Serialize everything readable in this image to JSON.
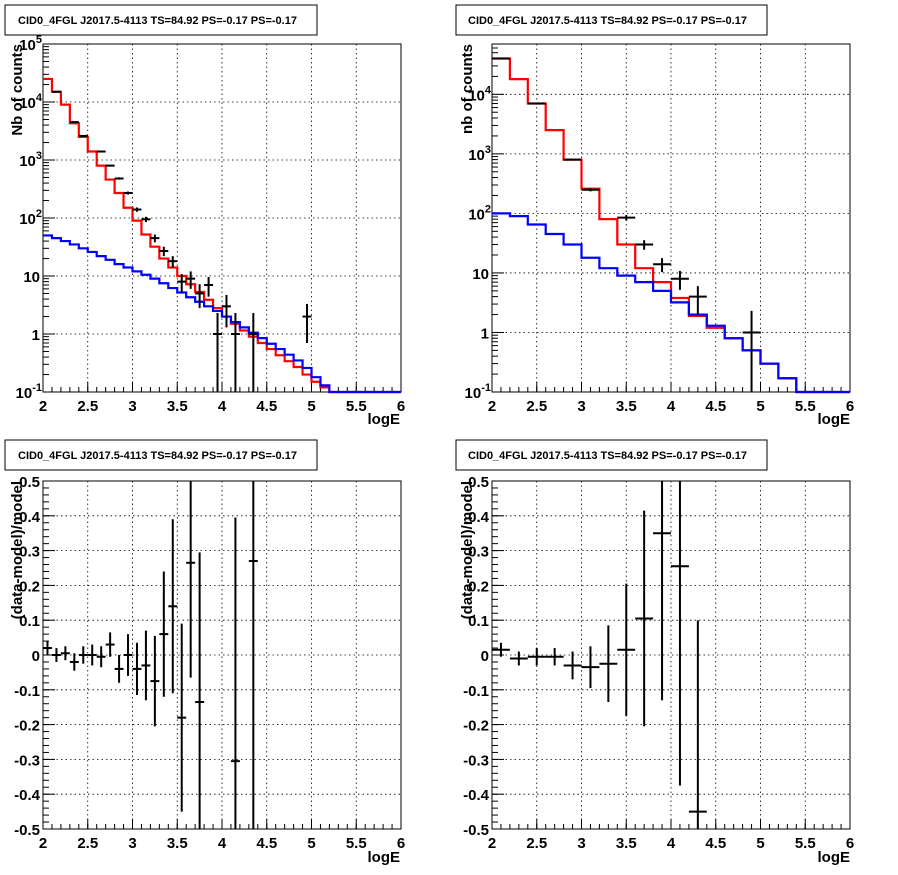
{
  "colors": {
    "model_total": "#ff0000",
    "model_source": "#0000ff",
    "data": "#000000",
    "grid": "#000000"
  },
  "chart_data": [
    {
      "type": "line",
      "title": "CID0_4FGL J2017.5-4113 TS=84.92 PS=-0.17 PS=-0.17",
      "xlabel": "logE",
      "ylabel": "Nb of counts",
      "yscale": "log",
      "xlim": [
        2,
        6
      ],
      "ylim": [
        0.1,
        100000
      ],
      "xticks": [
        "2",
        "2.5",
        "3",
        "3.5",
        "4",
        "4.5",
        "5",
        "5.5",
        "6"
      ],
      "yticks": [
        "10^-1",
        "1",
        "10",
        "10^2",
        "10^3",
        "10^4",
        "10^5"
      ],
      "grid": true,
      "bin_edges": [
        2.0,
        2.1,
        2.2,
        2.3,
        2.4,
        2.5,
        2.6,
        2.7,
        2.8,
        2.9,
        3.0,
        3.1,
        3.2,
        3.3,
        3.4,
        3.5,
        3.6,
        3.7,
        3.8,
        3.9,
        4.0,
        4.1,
        4.2,
        4.3,
        4.4,
        4.5,
        4.6,
        4.7,
        4.8,
        4.9,
        5.0,
        5.1,
        5.2,
        5.3,
        5.4,
        5.5,
        5.6,
        5.7,
        5.8,
        5.9,
        6.0
      ],
      "series": [
        {
          "kind": "model_total",
          "values": [
            25000,
            15000,
            9000,
            4300,
            2500,
            1400,
            800,
            460,
            270,
            150,
            90,
            52,
            32,
            20,
            14,
            10,
            7.2,
            5.3,
            3.9,
            2.8,
            2.0,
            1.5,
            1.15,
            0.9,
            0.7,
            0.55,
            0.43,
            0.34,
            0.27,
            0.2,
            0.15,
            0.12,
            0.1,
            0.1,
            0.1,
            0.1,
            0.1,
            0.1,
            0.1,
            0.1
          ]
        },
        {
          "kind": "model_source",
          "values": [
            50,
            45,
            40,
            35,
            30,
            26,
            22,
            19,
            16,
            14,
            12,
            10.5,
            9,
            7.5,
            6.2,
            5.2,
            4.3,
            3.6,
            3.0,
            2.5,
            2.0,
            1.6,
            1.3,
            1.05,
            0.85,
            0.68,
            0.55,
            0.44,
            0.35,
            0.26,
            0.18,
            0.13,
            0.1,
            0.1,
            0.1,
            0.1,
            0.1,
            0.1,
            0.1,
            0.1
          ]
        },
        {
          "kind": "data",
          "x": [
            2.15,
            2.35,
            2.45,
            2.65,
            2.75,
            2.85,
            2.95,
            3.05,
            3.15,
            3.25,
            3.35,
            3.45,
            3.55,
            3.65,
            3.75,
            3.85,
            3.95,
            4.05,
            4.15,
            4.35,
            4.95
          ],
          "y": [
            15000,
            4500,
            2600,
            1400,
            800,
            480,
            270,
            140,
            95,
            45,
            27,
            18,
            8,
            9,
            5,
            7,
            1,
            3,
            1,
            1,
            2
          ],
          "yerr_lo": [
            120,
            65,
            50,
            37,
            28,
            22,
            16,
            12,
            10,
            7,
            5,
            4,
            2.8,
            3,
            2.2,
            2.6,
            0.9,
            1.7,
            0.9,
            0.9,
            1.3
          ],
          "yerr_hi": [
            120,
            65,
            50,
            37,
            28,
            22,
            16,
            12,
            10,
            7,
            5,
            4,
            2.8,
            3,
            2.2,
            2.6,
            1.3,
            1.7,
            1.3,
            1.3,
            1.3
          ]
        }
      ]
    },
    {
      "type": "line",
      "title": "CID0_4FGL J2017.5-4113 TS=84.92 PS=-0.17 PS=-0.17",
      "xlabel": "logE",
      "ylabel": "nb of counts",
      "yscale": "log",
      "xlim": [
        2,
        6
      ],
      "ylim": [
        0.1,
        70000
      ],
      "xticks": [
        "2",
        "2.5",
        "3",
        "3.5",
        "4",
        "4.5",
        "5",
        "5.5",
        "6"
      ],
      "yticks": [
        "10^-1",
        "1",
        "10",
        "10^2",
        "10^3",
        "10^4"
      ],
      "grid": true,
      "bin_edges": [
        2.0,
        2.2,
        2.4,
        2.6,
        2.8,
        3.0,
        3.2,
        3.4,
        3.6,
        3.8,
        4.0,
        4.2,
        4.4,
        4.6,
        4.8,
        5.0,
        5.2,
        5.4,
        5.6,
        5.8,
        6.0
      ],
      "series": [
        {
          "kind": "model_total",
          "values": [
            40000,
            18000,
            7000,
            2500,
            800,
            260,
            80,
            30,
            12,
            7,
            3.8,
            1.9,
            1.2,
            0.8,
            0.5,
            0.3,
            0.17,
            0.1,
            0.1,
            0.1
          ]
        },
        {
          "kind": "model_source",
          "values": [
            100,
            90,
            65,
            45,
            30,
            18,
            12,
            9,
            7,
            5,
            3.2,
            2,
            1.3,
            0.8,
            0.5,
            0.3,
            0.17,
            0.1,
            0.1,
            0.1
          ]
        },
        {
          "kind": "data",
          "x": [
            2.1,
            2.5,
            2.9,
            3.1,
            3.5,
            3.7,
            3.9,
            4.1,
            4.3,
            4.9
          ],
          "y": [
            40000,
            7000,
            800,
            250,
            85,
            30,
            14,
            8,
            4,
            1
          ],
          "yerr_lo": [
            200,
            84,
            28,
            16,
            9,
            5.5,
            3.7,
            2.8,
            2,
            0.9
          ],
          "yerr_hi": [
            200,
            84,
            28,
            16,
            9,
            5.5,
            3.7,
            2.8,
            2,
            1.3
          ]
        }
      ]
    },
    {
      "type": "scatter",
      "title": "CID0_4FGL J2017.5-4113 TS=84.92 PS=-0.17 PS=-0.17",
      "xlabel": "logE",
      "ylabel": "(data-model)/model",
      "xlim": [
        2,
        6
      ],
      "ylim": [
        -0.5,
        0.5
      ],
      "xticks": [
        "2",
        "2.5",
        "3",
        "3.5",
        "4",
        "4.5",
        "5",
        "5.5",
        "6"
      ],
      "yticks": [
        "-0.5",
        "-0.4",
        "-0.3",
        "-0.2",
        "-0.1",
        "0",
        "0.1",
        "0.2",
        "0.3",
        "0.4",
        "0.5"
      ],
      "grid": true,
      "points": [
        {
          "x": 2.05,
          "y": 0.02,
          "e": 0.02
        },
        {
          "x": 2.15,
          "y": 0.0,
          "e": 0.02
        },
        {
          "x": 2.25,
          "y": 0.005,
          "e": 0.02
        },
        {
          "x": 2.35,
          "y": -0.02,
          "e": 0.025
        },
        {
          "x": 2.45,
          "y": 0.0,
          "e": 0.025
        },
        {
          "x": 2.55,
          "y": 0.0,
          "e": 0.03
        },
        {
          "x": 2.65,
          "y": -0.005,
          "e": 0.03
        },
        {
          "x": 2.75,
          "y": 0.03,
          "e": 0.035
        },
        {
          "x": 2.85,
          "y": -0.04,
          "e": 0.04
        },
        {
          "x": 2.95,
          "y": 0.0,
          "e": 0.06
        },
        {
          "x": 3.05,
          "y": -0.04,
          "e": 0.075
        },
        {
          "x": 3.15,
          "y": -0.03,
          "e": 0.1
        },
        {
          "x": 3.25,
          "y": -0.075,
          "e": 0.13
        },
        {
          "x": 3.35,
          "y": 0.06,
          "e": 0.18
        },
        {
          "x": 3.45,
          "y": 0.14,
          "e": 0.25
        },
        {
          "x": 3.55,
          "y": -0.18,
          "e": 0.27
        },
        {
          "x": 3.65,
          "y": 0.265,
          "e": 0.33
        },
        {
          "x": 3.75,
          "y": -0.135,
          "e": 0.43
        },
        {
          "x": 4.15,
          "y": -0.305,
          "e": 0.7
        },
        {
          "x": 4.35,
          "y": 0.27,
          "e": 0.9
        }
      ]
    },
    {
      "type": "scatter",
      "title": "CID0_4FGL J2017.5-4113 TS=84.92 PS=-0.17 PS=-0.17",
      "xlabel": "logE",
      "ylabel": "(data-model)/model",
      "xlim": [
        2,
        6
      ],
      "ylim": [
        -0.5,
        0.5
      ],
      "xticks": [
        "2",
        "2.5",
        "3",
        "3.5",
        "4",
        "4.5",
        "5",
        "5.5",
        "6"
      ],
      "yticks": [
        "-0.5",
        "-0.4",
        "-0.3",
        "-0.2",
        "-0.1",
        "0",
        "0.1",
        "0.2",
        "0.3",
        "0.4",
        "0.5"
      ],
      "grid": true,
      "points": [
        {
          "x": 2.1,
          "y": 0.015,
          "e": 0.02
        },
        {
          "x": 2.3,
          "y": -0.01,
          "e": 0.02
        },
        {
          "x": 2.5,
          "y": -0.005,
          "e": 0.025
        },
        {
          "x": 2.7,
          "y": -0.005,
          "e": 0.025
        },
        {
          "x": 2.9,
          "y": -0.03,
          "e": 0.04
        },
        {
          "x": 3.1,
          "y": -0.035,
          "e": 0.06
        },
        {
          "x": 3.3,
          "y": -0.025,
          "e": 0.11
        },
        {
          "x": 3.5,
          "y": 0.015,
          "e": 0.19
        },
        {
          "x": 3.7,
          "y": 0.105,
          "e": 0.31
        },
        {
          "x": 3.9,
          "y": 0.35,
          "e": 0.48
        },
        {
          "x": 4.1,
          "y": 0.255,
          "e": 0.63
        },
        {
          "x": 4.3,
          "y": -0.45,
          "e": 0.55
        }
      ]
    }
  ]
}
